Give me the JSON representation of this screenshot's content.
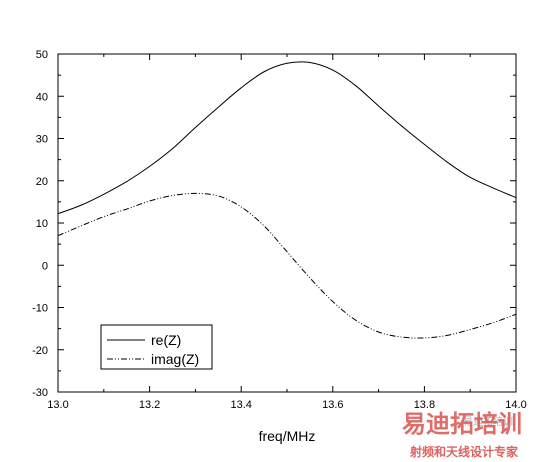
{
  "chart_data": {
    "type": "line",
    "xlabel": "freq/MHz",
    "ylabel": "",
    "xlim": [
      13.0,
      14.0
    ],
    "ylim": [
      -30,
      50
    ],
    "xticks": [
      13.0,
      13.2,
      13.4,
      13.6,
      13.8,
      14.0
    ],
    "xtick_labels": [
      "13.0",
      "13.2",
      "13.4",
      "13.6",
      "13.8",
      "14.0"
    ],
    "yticks": [
      -30,
      -20,
      -10,
      0,
      10,
      20,
      30,
      40,
      50
    ],
    "ytick_labels": [
      "-30",
      "-20",
      "-10",
      "0",
      "10",
      "20",
      "30",
      "40",
      "50"
    ],
    "grid": false,
    "legend_position": "bottom-left",
    "series": [
      {
        "name": "re(Z)",
        "style": "solid",
        "color": "#000000",
        "x": [
          13.0,
          13.05,
          13.1,
          13.15,
          13.2,
          13.25,
          13.3,
          13.35,
          13.4,
          13.45,
          13.5,
          13.55,
          13.6,
          13.65,
          13.7,
          13.75,
          13.8,
          13.85,
          13.9,
          13.95,
          14.0
        ],
        "y": [
          12.2,
          14.2,
          16.8,
          19.8,
          23.4,
          27.6,
          32.6,
          37.4,
          42.0,
          45.8,
          47.8,
          48.0,
          46.2,
          42.5,
          37.7,
          33.0,
          28.6,
          24.4,
          20.8,
          18.3,
          16.0
        ]
      },
      {
        "name": "imag(Z)",
        "style": "dash-dot-dot",
        "color": "#000000",
        "x": [
          13.0,
          13.05,
          13.1,
          13.15,
          13.2,
          13.25,
          13.3,
          13.35,
          13.4,
          13.45,
          13.5,
          13.55,
          13.6,
          13.65,
          13.7,
          13.75,
          13.8,
          13.85,
          13.9,
          13.95,
          14.0
        ],
        "y": [
          7.0,
          9.3,
          11.5,
          13.3,
          15.2,
          16.5,
          17.0,
          16.4,
          13.8,
          9.3,
          3.2,
          -3.0,
          -8.6,
          -13.0,
          -15.8,
          -17.0,
          -17.2,
          -16.6,
          -15.2,
          -13.6,
          -11.6
        ]
      }
    ]
  },
  "watermark": {
    "main": "易迪拓培训",
    "sub": "射频和天线设计专家",
    "faint": "易迪拓培训"
  }
}
